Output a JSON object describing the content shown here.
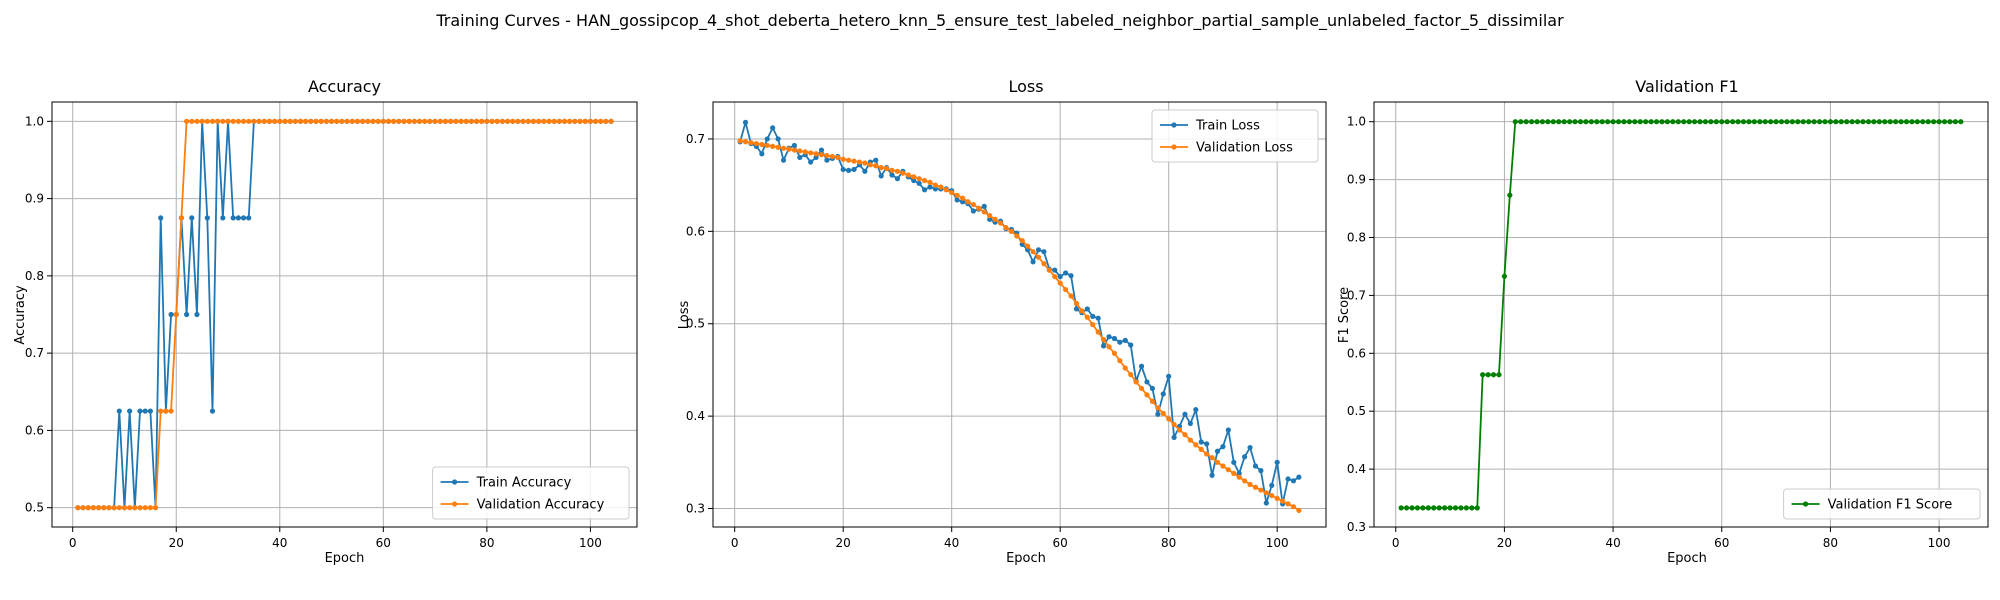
{
  "figure": {
    "suptitle": "Training Curves - HAN_gossipcop_4_shot_deberta_hetero_knn_5_ensure_test_labeled_neighbor_partial_sample_unlabeled_factor_5_dissimilar"
  },
  "colors": {
    "train": "#1f77b4",
    "validation": "#ff7f0e",
    "f1": "#008000",
    "grid": "#b0b0b0",
    "axes": "#000000"
  },
  "chart_data": [
    {
      "type": "line",
      "title": "Accuracy",
      "xlabel": "Epoch",
      "ylabel": "Accuracy",
      "xlim": [
        -4,
        109
      ],
      "ylim": [
        0.475,
        1.025
      ],
      "xticks": [
        0,
        20,
        40,
        60,
        80,
        100
      ],
      "yticks": [
        0.5,
        0.6,
        0.7,
        0.8,
        0.9,
        1.0
      ],
      "ytick_labels": [
        "0.5",
        "0.6",
        "0.7",
        "0.8",
        "0.9",
        "1.0"
      ],
      "grid": true,
      "legend_position": "lower-right",
      "series": [
        {
          "name": "Train Accuracy",
          "color_key": "train",
          "x_start": 1,
          "values": [
            0.5,
            0.5,
            0.5,
            0.5,
            0.5,
            0.5,
            0.5,
            0.5,
            0.625,
            0.5,
            0.625,
            0.5,
            0.625,
            0.625,
            0.625,
            0.5,
            0.875,
            0.625,
            0.75,
            0.75,
            0.875,
            0.75,
            0.875,
            0.75,
            1.0,
            0.875,
            0.625,
            1.0,
            0.875,
            1.0,
            0.875,
            0.875,
            0.875,
            0.875,
            1.0,
            1.0,
            1.0,
            1.0,
            1.0,
            1.0,
            1.0,
            1.0,
            1.0,
            1.0,
            1.0,
            1.0,
            1.0,
            1.0,
            1.0,
            1.0,
            1.0,
            1.0,
            1.0,
            1.0,
            1.0,
            1.0,
            1.0,
            1.0,
            1.0,
            1.0,
            1.0,
            1.0,
            1.0,
            1.0,
            1.0,
            1.0,
            1.0,
            1.0,
            1.0,
            1.0,
            1.0,
            1.0,
            1.0,
            1.0,
            1.0,
            1.0,
            1.0,
            1.0,
            1.0,
            1.0,
            1.0,
            1.0,
            1.0,
            1.0,
            1.0,
            1.0,
            1.0,
            1.0,
            1.0,
            1.0,
            1.0,
            1.0,
            1.0,
            1.0,
            1.0,
            1.0,
            1.0,
            1.0,
            1.0,
            1.0,
            1.0,
            1.0,
            1.0,
            1.0
          ]
        },
        {
          "name": "Validation Accuracy",
          "color_key": "validation",
          "x_start": 1,
          "values": [
            0.5,
            0.5,
            0.5,
            0.5,
            0.5,
            0.5,
            0.5,
            0.5,
            0.5,
            0.5,
            0.5,
            0.5,
            0.5,
            0.5,
            0.5,
            0.5,
            0.625,
            0.625,
            0.625,
            0.75,
            0.875,
            1.0,
            1.0,
            1.0,
            1.0,
            1.0,
            1.0,
            1.0,
            1.0,
            1.0,
            1.0,
            1.0,
            1.0,
            1.0,
            1.0,
            1.0,
            1.0,
            1.0,
            1.0,
            1.0,
            1.0,
            1.0,
            1.0,
            1.0,
            1.0,
            1.0,
            1.0,
            1.0,
            1.0,
            1.0,
            1.0,
            1.0,
            1.0,
            1.0,
            1.0,
            1.0,
            1.0,
            1.0,
            1.0,
            1.0,
            1.0,
            1.0,
            1.0,
            1.0,
            1.0,
            1.0,
            1.0,
            1.0,
            1.0,
            1.0,
            1.0,
            1.0,
            1.0,
            1.0,
            1.0,
            1.0,
            1.0,
            1.0,
            1.0,
            1.0,
            1.0,
            1.0,
            1.0,
            1.0,
            1.0,
            1.0,
            1.0,
            1.0,
            1.0,
            1.0,
            1.0,
            1.0,
            1.0,
            1.0,
            1.0,
            1.0,
            1.0,
            1.0,
            1.0,
            1.0,
            1.0,
            1.0,
            1.0,
            1.0
          ]
        }
      ]
    },
    {
      "type": "line",
      "title": "Loss",
      "xlabel": "Epoch",
      "ylabel": "Loss",
      "xlim": [
        -4,
        109
      ],
      "ylim": [
        0.28,
        0.74
      ],
      "xticks": [
        0,
        20,
        40,
        60,
        80,
        100
      ],
      "yticks": [
        0.3,
        0.4,
        0.5,
        0.6,
        0.7
      ],
      "ytick_labels": [
        "0.3",
        "0.4",
        "0.5",
        "0.6",
        "0.7"
      ],
      "grid": true,
      "legend_position": "top-right",
      "series": [
        {
          "name": "Train Loss",
          "color_key": "train",
          "x_start": 1,
          "values": [
            0.697,
            0.718,
            0.695,
            0.692,
            0.684,
            0.7,
            0.712,
            0.7,
            0.677,
            0.69,
            0.693,
            0.68,
            0.683,
            0.675,
            0.68,
            0.688,
            0.677,
            0.679,
            0.681,
            0.667,
            0.666,
            0.667,
            0.672,
            0.665,
            0.675,
            0.677,
            0.66,
            0.669,
            0.661,
            0.657,
            0.665,
            0.659,
            0.655,
            0.652,
            0.645,
            0.648,
            0.646,
            0.646,
            0.646,
            0.644,
            0.634,
            0.632,
            0.63,
            0.622,
            0.624,
            0.627,
            0.613,
            0.61,
            0.611,
            0.603,
            0.602,
            0.598,
            0.586,
            0.58,
            0.567,
            0.58,
            0.578,
            0.559,
            0.558,
            0.551,
            0.555,
            0.552,
            0.516,
            0.512,
            0.516,
            0.508,
            0.506,
            0.476,
            0.486,
            0.484,
            0.48,
            0.482,
            0.477,
            0.438,
            0.454,
            0.437,
            0.43,
            0.402,
            0.424,
            0.443,
            0.377,
            0.389,
            0.402,
            0.392,
            0.407,
            0.372,
            0.37,
            0.336,
            0.362,
            0.367,
            0.385,
            0.35,
            0.338,
            0.356,
            0.366,
            0.346,
            0.341,
            0.306,
            0.325,
            0.35,
            0.305,
            0.332,
            0.33,
            0.334
          ]
        },
        {
          "name": "Validation Loss",
          "color_key": "validation",
          "x_start": 1,
          "values": [
            0.698,
            0.697,
            0.696,
            0.695,
            0.694,
            0.693,
            0.692,
            0.691,
            0.69,
            0.689,
            0.688,
            0.687,
            0.686,
            0.685,
            0.684,
            0.683,
            0.682,
            0.681,
            0.68,
            0.678,
            0.677,
            0.676,
            0.675,
            0.674,
            0.672,
            0.671,
            0.669,
            0.668,
            0.666,
            0.665,
            0.663,
            0.661,
            0.659,
            0.657,
            0.655,
            0.653,
            0.65,
            0.648,
            0.645,
            0.642,
            0.639,
            0.636,
            0.632,
            0.629,
            0.625,
            0.621,
            0.617,
            0.613,
            0.609,
            0.604,
            0.6,
            0.595,
            0.59,
            0.584,
            0.578,
            0.572,
            0.565,
            0.558,
            0.551,
            0.544,
            0.537,
            0.53,
            0.522,
            0.514,
            0.507,
            0.499,
            0.491,
            0.483,
            0.475,
            0.468,
            0.46,
            0.452,
            0.445,
            0.437,
            0.43,
            0.423,
            0.416,
            0.409,
            0.403,
            0.397,
            0.391,
            0.385,
            0.38,
            0.374,
            0.369,
            0.364,
            0.359,
            0.355,
            0.35,
            0.346,
            0.342,
            0.338,
            0.334,
            0.33,
            0.326,
            0.323,
            0.32,
            0.317,
            0.314,
            0.311,
            0.308,
            0.305,
            0.302,
            0.298
          ]
        }
      ]
    },
    {
      "type": "line",
      "title": "Validation F1",
      "xlabel": "Epoch",
      "ylabel": "F1 Score",
      "xlim": [
        -4,
        109
      ],
      "ylim": [
        0.3,
        1.034
      ],
      "xticks": [
        0,
        20,
        40,
        60,
        80,
        100
      ],
      "yticks": [
        0.3,
        0.4,
        0.5,
        0.6,
        0.7,
        0.8,
        0.9,
        1.0
      ],
      "ytick_labels": [
        "0.3",
        "0.4",
        "0.5",
        "0.6",
        "0.7",
        "0.8",
        "0.9",
        "1.0"
      ],
      "grid": true,
      "legend_position": "lower-right",
      "series": [
        {
          "name": "Validation F1 Score",
          "color_key": "f1",
          "x_start": 1,
          "values": [
            0.333,
            0.333,
            0.333,
            0.333,
            0.333,
            0.333,
            0.333,
            0.333,
            0.333,
            0.333,
            0.333,
            0.333,
            0.333,
            0.333,
            0.333,
            0.563,
            0.563,
            0.563,
            0.563,
            0.733,
            0.873,
            1.0,
            1.0,
            1.0,
            1.0,
            1.0,
            1.0,
            1.0,
            1.0,
            1.0,
            1.0,
            1.0,
            1.0,
            1.0,
            1.0,
            1.0,
            1.0,
            1.0,
            1.0,
            1.0,
            1.0,
            1.0,
            1.0,
            1.0,
            1.0,
            1.0,
            1.0,
            1.0,
            1.0,
            1.0,
            1.0,
            1.0,
            1.0,
            1.0,
            1.0,
            1.0,
            1.0,
            1.0,
            1.0,
            1.0,
            1.0,
            1.0,
            1.0,
            1.0,
            1.0,
            1.0,
            1.0,
            1.0,
            1.0,
            1.0,
            1.0,
            1.0,
            1.0,
            1.0,
            1.0,
            1.0,
            1.0,
            1.0,
            1.0,
            1.0,
            1.0,
            1.0,
            1.0,
            1.0,
            1.0,
            1.0,
            1.0,
            1.0,
            1.0,
            1.0,
            1.0,
            1.0,
            1.0,
            1.0,
            1.0,
            1.0,
            1.0,
            1.0,
            1.0,
            1.0,
            1.0,
            1.0,
            1.0,
            1.0
          ]
        }
      ]
    }
  ]
}
